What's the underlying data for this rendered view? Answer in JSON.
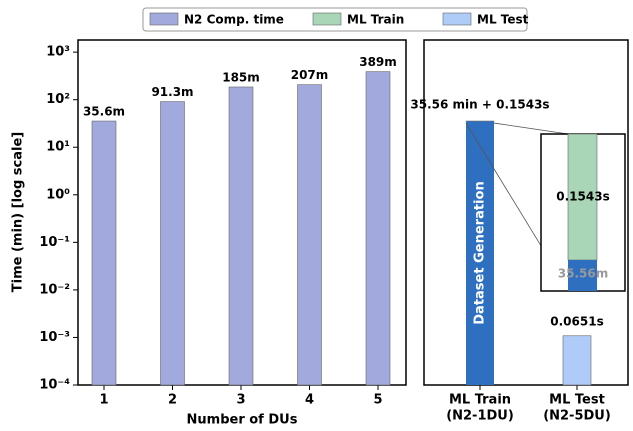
{
  "chart_data": [
    {
      "type": "bar",
      "log_scale": true,
      "xlabel": "Number of DUs",
      "ylabel": "Time (min) [log scale]",
      "categories": [
        "1",
        "2",
        "3",
        "4",
        "5"
      ],
      "series": [
        {
          "name": "N2 Comp. time",
          "color": "#a2a9dc",
          "values": [
            35.6,
            91.3,
            185,
            207,
            389
          ],
          "value_labels": [
            "35.6m",
            "91.3m",
            "185m",
            "207m",
            "389m"
          ]
        }
      ],
      "ylim": [
        0.0001,
        1800
      ],
      "yticks": [
        {
          "value": 0.0001,
          "label": "10⁻⁴"
        },
        {
          "value": 0.001,
          "label": "10⁻³"
        },
        {
          "value": 0.01,
          "label": "10⁻²"
        },
        {
          "value": 0.1,
          "label": "10⁻¹"
        },
        {
          "value": 1,
          "label": "10⁰"
        },
        {
          "value": 10,
          "label": "10¹"
        },
        {
          "value": 100,
          "label": "10²"
        },
        {
          "value": 1000,
          "label": "10³"
        }
      ]
    },
    {
      "type": "stacked_bar",
      "log_scale": true,
      "annotation": "35.56 min + 0.1543s",
      "categories": [
        [
          "ML Train",
          "(N2-1DU)"
        ],
        [
          "ML Test",
          "(N2-5DU)"
        ]
      ],
      "series": [
        {
          "name": "Dataset Generation",
          "color": "#2f6fc0",
          "values": [
            35.56,
            null
          ],
          "value_labels": [
            "35.56m",
            null
          ]
        },
        {
          "name": "ML Train",
          "color": "#a9d6b6",
          "values": [
            0.002572,
            null
          ],
          "value_labels": [
            "0.1543s",
            null
          ]
        },
        {
          "name": "ML Test",
          "color": "#afcbf8",
          "values": [
            null,
            0.001085
          ],
          "value_labels": [
            null,
            "0.0651s"
          ]
        }
      ],
      "ylim": [
        0.0001,
        1800
      ]
    }
  ]
}
